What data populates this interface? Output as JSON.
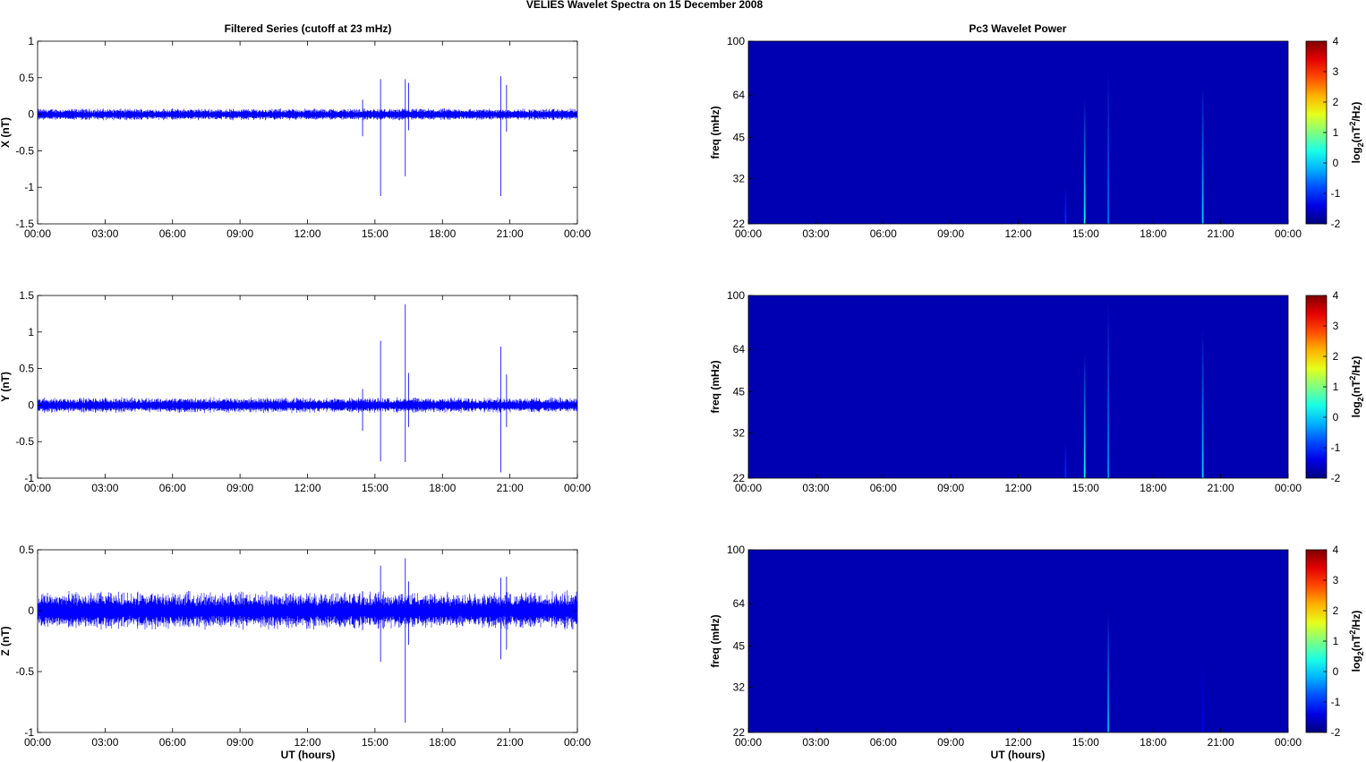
{
  "figure": {
    "title": "VELIES Wavelet Spectra on 15 December  2008",
    "left_title": "Filtered Series (cutoff at 23 mHz)",
    "right_title": "Pc3 Wavelet Power",
    "xlabel": "UT (hours)"
  },
  "colors": {
    "trace": "#0000ff",
    "background": "#00008f",
    "spike_cyan": "#40c8ff"
  },
  "chart_data": [
    {
      "type": "line",
      "ylabel": "X (nT)",
      "xticks": [
        "00:00",
        "03:00",
        "06:00",
        "09:00",
        "12:00",
        "15:00",
        "18:00",
        "21:00",
        "00:00"
      ],
      "xlim": [
        0,
        24
      ],
      "ylim": [
        -1.5,
        1
      ],
      "yticks": [
        "-1.5",
        "-1",
        "-0.5",
        "0",
        "0.5",
        "1"
      ],
      "ytick_values": [
        -1.5,
        -1,
        -0.5,
        0,
        0.5,
        1
      ],
      "noise_amplitude": 0.06,
      "spikes": [
        {
          "x": 14.45,
          "ymin": -0.3,
          "ymax": 0.2
        },
        {
          "x": 15.25,
          "ymin": -1.12,
          "ymax": 0.48
        },
        {
          "x": 16.35,
          "ymin": -0.85,
          "ymax": 0.48
        },
        {
          "x": 16.5,
          "ymin": -0.22,
          "ymax": 0.43
        },
        {
          "x": 20.6,
          "ymin": -1.12,
          "ymax": 0.52
        },
        {
          "x": 20.85,
          "ymin": -0.24,
          "ymax": 0.4
        }
      ]
    },
    {
      "type": "heatmap",
      "ylabel": "freq (mHz)",
      "colorbar_label": "log2(nT2/Hz)",
      "xticks": [
        "00:00",
        "03:00",
        "06:00",
        "09:00",
        "12:00",
        "15:00",
        "18:00",
        "21:00",
        "00:00"
      ],
      "yticks": [
        "22",
        "32",
        "45",
        "64",
        "100"
      ],
      "ytick_values": [
        22,
        32,
        45,
        64,
        100
      ],
      "colorbar_ticks": [
        "-2",
        "-1",
        "0",
        "1",
        "2",
        "3",
        "4"
      ],
      "colorbar_values": [
        -2,
        -1,
        0,
        1,
        2,
        3,
        4
      ],
      "background_value": -1.7,
      "spikes": [
        {
          "x": 14.1,
          "fmax": 30,
          "value": -1.0
        },
        {
          "x": 14.95,
          "fmax": 62,
          "value": 0.3
        },
        {
          "x": 16.0,
          "fmax": 80,
          "value": -0.6
        },
        {
          "x": 20.2,
          "fmax": 70,
          "value": 0.0
        }
      ]
    },
    {
      "type": "line",
      "ylabel": "Y (nT)",
      "xticks": [
        "00:00",
        "03:00",
        "06:00",
        "09:00",
        "12:00",
        "15:00",
        "18:00",
        "21:00",
        "00:00"
      ],
      "xlim": [
        0,
        24
      ],
      "ylim": [
        -1,
        1.5
      ],
      "yticks": [
        "-1",
        "-0.5",
        "0",
        "0.5",
        "1",
        "1.5"
      ],
      "ytick_values": [
        -1,
        -0.5,
        0,
        0.5,
        1,
        1.5
      ],
      "noise_amplitude": 0.08,
      "spikes": [
        {
          "x": 14.45,
          "ymin": -0.35,
          "ymax": 0.22
        },
        {
          "x": 15.25,
          "ymin": -0.77,
          "ymax": 0.88
        },
        {
          "x": 16.35,
          "ymin": -0.78,
          "ymax": 1.38
        },
        {
          "x": 16.5,
          "ymin": -0.3,
          "ymax": 0.44
        },
        {
          "x": 20.6,
          "ymin": -0.92,
          "ymax": 0.8
        },
        {
          "x": 20.85,
          "ymin": -0.3,
          "ymax": 0.42
        }
      ]
    },
    {
      "type": "heatmap",
      "ylabel": "freq (mHz)",
      "colorbar_label": "log2(nT2/Hz)",
      "xticks": [
        "00:00",
        "03:00",
        "06:00",
        "09:00",
        "12:00",
        "15:00",
        "18:00",
        "21:00",
        "00:00"
      ],
      "yticks": [
        "22",
        "32",
        "45",
        "64",
        "100"
      ],
      "ytick_values": [
        22,
        32,
        45,
        64,
        100
      ],
      "colorbar_ticks": [
        "-2",
        "-1",
        "0",
        "1",
        "2",
        "3",
        "4"
      ],
      "colorbar_values": [
        -2,
        -1,
        0,
        1,
        2,
        3,
        4
      ],
      "background_value": -1.7,
      "spikes": [
        {
          "x": 14.1,
          "fmax": 30,
          "value": -1.0
        },
        {
          "x": 14.95,
          "fmax": 62,
          "value": 0.3
        },
        {
          "x": 16.0,
          "fmax": 95,
          "value": -0.4
        },
        {
          "x": 20.2,
          "fmax": 75,
          "value": 0.0
        }
      ]
    },
    {
      "type": "line",
      "ylabel": "Z (nT)",
      "xticks": [
        "00:00",
        "03:00",
        "06:00",
        "09:00",
        "12:00",
        "15:00",
        "18:00",
        "21:00",
        "00:00"
      ],
      "xlim": [
        0,
        24
      ],
      "ylim": [
        -1,
        0.5
      ],
      "yticks": [
        "-1",
        "-0.5",
        "0",
        "0.5"
      ],
      "ytick_values": [
        -1,
        -0.5,
        0,
        0.5
      ],
      "noise_amplitude": 0.12,
      "spikes": [
        {
          "x": 14.45,
          "ymin": -0.16,
          "ymax": 0.16
        },
        {
          "x": 15.25,
          "ymin": -0.42,
          "ymax": 0.37
        },
        {
          "x": 16.35,
          "ymin": -0.92,
          "ymax": 0.43
        },
        {
          "x": 16.5,
          "ymin": -0.28,
          "ymax": 0.24
        },
        {
          "x": 20.6,
          "ymin": -0.4,
          "ymax": 0.27
        },
        {
          "x": 20.85,
          "ymin": -0.32,
          "ymax": 0.28
        }
      ]
    },
    {
      "type": "heatmap",
      "ylabel": "freq (mHz)",
      "colorbar_label": "log2(nT2/Hz)",
      "xticks": [
        "00:00",
        "03:00",
        "06:00",
        "09:00",
        "12:00",
        "15:00",
        "18:00",
        "21:00",
        "00:00"
      ],
      "yticks": [
        "22",
        "32",
        "45",
        "64",
        "100"
      ],
      "ytick_values": [
        22,
        32,
        45,
        64,
        100
      ],
      "colorbar_ticks": [
        "-2",
        "-1",
        "0",
        "1",
        "2",
        "3",
        "4"
      ],
      "colorbar_values": [
        -2,
        -1,
        0,
        1,
        2,
        3,
        4
      ],
      "background_value": -1.7,
      "spikes": [
        {
          "x": 16.0,
          "fmax": 60,
          "value": -0.2
        },
        {
          "x": 20.2,
          "fmax": 40,
          "value": -1.3
        }
      ]
    }
  ]
}
